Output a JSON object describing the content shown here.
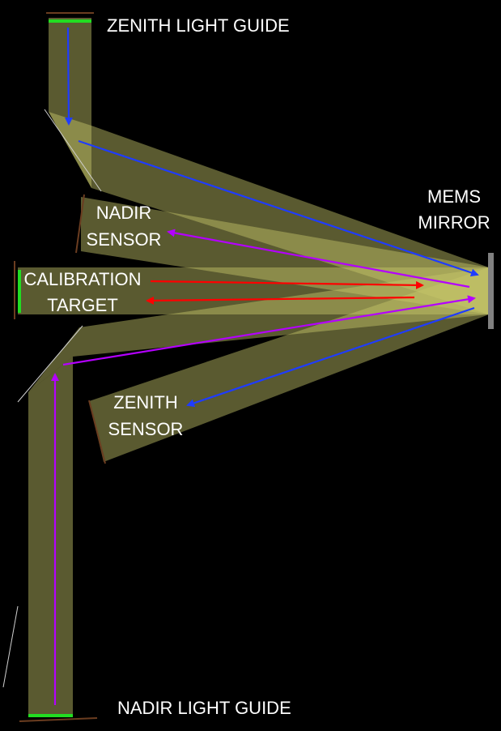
{
  "labels": {
    "zenith_light_guide": "ZENITH LIGHT GUIDE",
    "nadir_sensor_line1": "NADIR",
    "nadir_sensor_line2": "SENSOR",
    "mems_mirror_line1": "MEMS",
    "mems_mirror_line2": "MIRROR",
    "calibration_line1": "CALIBRATION",
    "calibration_line2": "TARGET",
    "zenith_sensor_line1": "ZENITH",
    "zenith_sensor_line2": "SENSOR",
    "nadir_light_guide": "NADIR LIGHT GUIDE"
  },
  "colors": {
    "background": "#000000",
    "beam": "#8f8f4e",
    "beam_bright": "#e6e67a",
    "zenith_path": "#1f3cff",
    "nadir_path": "#b400ff",
    "calibration_path": "#ff0000",
    "light_guide_end": "#22dd22",
    "mirror": "#808080",
    "component_edge": "#6b3d20",
    "fold_mirror": "#d0d0d0"
  }
}
